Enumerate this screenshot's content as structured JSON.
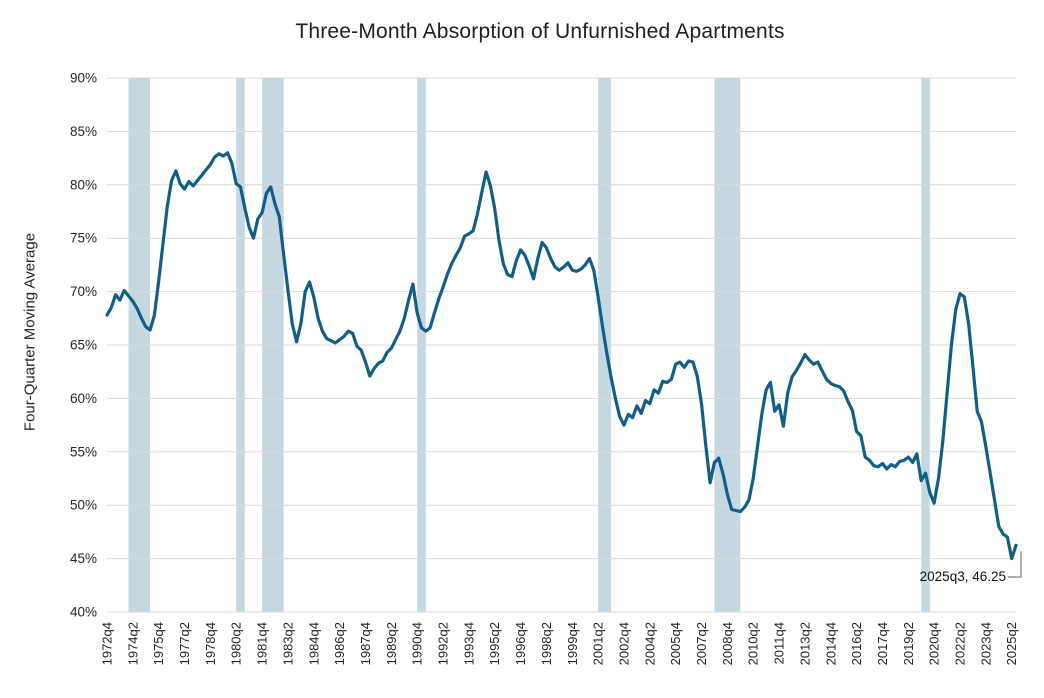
{
  "chart_data": {
    "type": "line",
    "title": "Three-Month Absorption of Unfurnished Apartments",
    "ylabel": "Four-Quarter Moving Average",
    "xlabel": "",
    "ylim": [
      40,
      90
    ],
    "grid": true,
    "legend": "none",
    "x_start": "1972q4",
    "x_end": "2025q3",
    "x_tick_labels": [
      "1972q4",
      "1974q2",
      "1975q4",
      "1977q2",
      "1978q4",
      "1980q2",
      "1981q4",
      "1983q2",
      "1984q4",
      "1986q2",
      "1987q4",
      "1989q2",
      "1990q4",
      "1992q2",
      "1993q4",
      "1995q2",
      "1996q4",
      "1998q2",
      "1999q4",
      "2001q2",
      "2002q4",
      "2004q2",
      "2005q4",
      "2007q2",
      "2008q4",
      "2010q2",
      "2011q4",
      "2013q2",
      "2014q4",
      "2016q2",
      "2017q4",
      "2019q2",
      "2020q4",
      "2022q2",
      "2023q4",
      "2025q2"
    ],
    "x_tick_step_quarters": 6,
    "y_tick_labels": [
      "90%",
      "85%",
      "80%",
      "75%",
      "70%",
      "65%",
      "60%",
      "55%",
      "50%",
      "45%",
      "40%"
    ],
    "y_ticks": [
      90,
      85,
      80,
      75,
      70,
      65,
      60,
      55,
      50,
      45,
      40
    ],
    "values": [
      67.8,
      68.5,
      69.7,
      69.2,
      70.1,
      69.6,
      69.1,
      68.4,
      67.5,
      66.7,
      66.4,
      67.8,
      71.0,
      74.5,
      78.0,
      80.4,
      81.3,
      80.1,
      79.6,
      80.3,
      79.9,
      80.4,
      80.9,
      81.4,
      81.9,
      82.6,
      82.9,
      82.7,
      83.0,
      82.0,
      80.1,
      79.8,
      77.8,
      76.0,
      75.0,
      76.8,
      77.4,
      79.2,
      79.8,
      78.2,
      77.0,
      73.5,
      70.2,
      67.0,
      65.3,
      67.0,
      70.0,
      70.9,
      69.5,
      67.5,
      66.3,
      65.6,
      65.4,
      65.2,
      65.5,
      65.8,
      66.3,
      66.1,
      64.9,
      64.5,
      63.4,
      62.1,
      62.8,
      63.3,
      63.5,
      64.3,
      64.7,
      65.5,
      66.3,
      67.5,
      69.2,
      70.7,
      68.0,
      66.6,
      66.3,
      66.6,
      68.0,
      69.3,
      70.4,
      71.6,
      72.6,
      73.4,
      74.1,
      75.2,
      75.4,
      75.7,
      77.3,
      79.3,
      81.2,
      79.9,
      77.8,
      74.8,
      72.6,
      71.6,
      71.4,
      72.9,
      73.9,
      73.4,
      72.4,
      71.2,
      73.1,
      74.6,
      74.1,
      73.1,
      72.3,
      72.0,
      72.3,
      72.7,
      72.0,
      71.9,
      72.1,
      72.5,
      73.1,
      72.0,
      69.5,
      66.8,
      64.3,
      62.0,
      60.0,
      58.3,
      57.5,
      58.5,
      58.2,
      59.3,
      58.6,
      59.8,
      59.5,
      60.8,
      60.5,
      61.6,
      61.5,
      61.8,
      63.2,
      63.4,
      62.9,
      63.5,
      63.4,
      62.1,
      59.5,
      55.6,
      52.1,
      54.0,
      54.4,
      52.9,
      51.0,
      49.6,
      49.5,
      49.4,
      49.8,
      50.5,
      52.5,
      55.5,
      58.5,
      60.8,
      61.5,
      58.8,
      59.4,
      57.4,
      60.5,
      62.0,
      62.6,
      63.3,
      64.1,
      63.6,
      63.2,
      63.4,
      62.6,
      61.8,
      61.4,
      61.2,
      61.1,
      60.7,
      59.7,
      58.9,
      56.9,
      56.5,
      54.5,
      54.2,
      53.7,
      53.6,
      53.9,
      53.4,
      53.8,
      53.6,
      54.1,
      54.2,
      54.5,
      54.0,
      54.8,
      52.3,
      53.0,
      51.2,
      50.2,
      52.5,
      56.0,
      60.5,
      65.0,
      68.3,
      69.8,
      69.5,
      67.0,
      63.0,
      58.8,
      57.8,
      55.5,
      53.0,
      50.5,
      48.0,
      47.3,
      47.0,
      45.0,
      46.25
    ],
    "recession_bands": [
      {
        "from": "1974q1",
        "to": "1975q2"
      },
      {
        "from": "1980q2",
        "to": "1980q4"
      },
      {
        "from": "1981q4",
        "to": "1983q1"
      },
      {
        "from": "1990q4",
        "to": "1991q2"
      },
      {
        "from": "2001q2",
        "to": "2002q1"
      },
      {
        "from": "2008q1",
        "to": "2009q3"
      },
      {
        "from": "2020q1",
        "to": "2020q3"
      }
    ],
    "annotation": {
      "label": "2025q3, 46.25"
    },
    "colors": {
      "line": "#115f88",
      "recession_band": "#c5d8e2",
      "gridline": "#d9d9d9",
      "text": "#262626",
      "annotation_connector": "#808080"
    }
  }
}
